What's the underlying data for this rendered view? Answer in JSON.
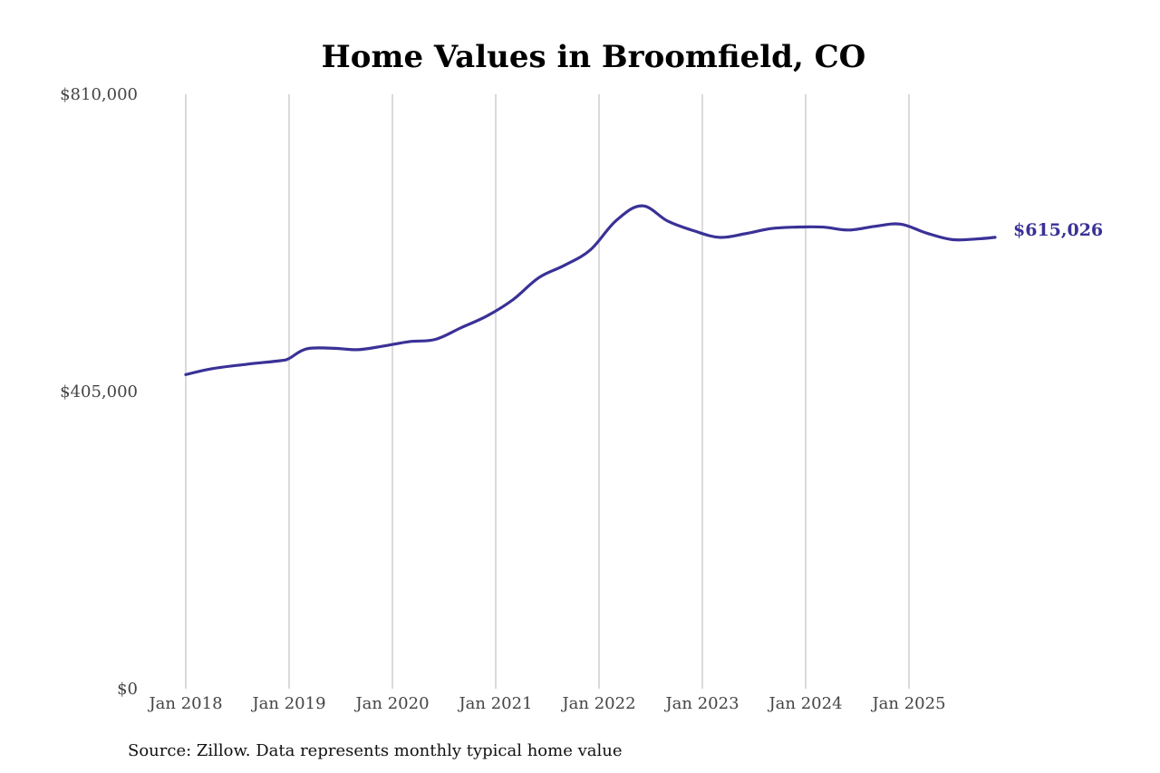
{
  "colors": {
    "series": "#3a3197",
    "grid": "#b5b5b5",
    "tick_text": "#444444"
  },
  "source_note": "Source: Zillow. Data represents monthly typical home value",
  "chart_data": {
    "type": "line",
    "title": "Home Values in Broomfield, CO",
    "xlabel": "",
    "ylabel": "",
    "ylim": [
      0,
      810000
    ],
    "xlim": [
      "2018-01",
      "2025-11"
    ],
    "grid": {
      "x": true,
      "y": false
    },
    "legend": "none",
    "yticks": [
      {
        "value": 0,
        "label": "$0"
      },
      {
        "value": 405000,
        "label": "$405,000"
      },
      {
        "value": 810000,
        "label": "$810,000"
      }
    ],
    "xticks": [
      {
        "value": "2018-01",
        "label": "Jan 2018"
      },
      {
        "value": "2019-01",
        "label": "Jan 2019"
      },
      {
        "value": "2020-01",
        "label": "Jan 2020"
      },
      {
        "value": "2021-01",
        "label": "Jan 2021"
      },
      {
        "value": "2022-01",
        "label": "Jan 2022"
      },
      {
        "value": "2023-01",
        "label": "Jan 2023"
      },
      {
        "value": "2024-01",
        "label": "Jan 2024"
      },
      {
        "value": "2025-01",
        "label": "Jan 2025"
      }
    ],
    "end_label": "$615,026",
    "series": [
      {
        "x": [
          "2018-01",
          "2018-04",
          "2018-08",
          "2018-12",
          "2019-01",
          "2019-03",
          "2019-06",
          "2019-09",
          "2019-12",
          "2020-03",
          "2020-06",
          "2020-09",
          "2020-12",
          "2021-03",
          "2021-06",
          "2021-09",
          "2021-12",
          "2022-03",
          "2022-06",
          "2022-09",
          "2022-12",
          "2023-03",
          "2023-06",
          "2023-09",
          "2023-12",
          "2024-03",
          "2024-06",
          "2024-09",
          "2024-12",
          "2025-03",
          "2025-06",
          "2025-09",
          "2025-11"
        ],
        "values": [
          428000,
          436000,
          442000,
          447000,
          450000,
          463000,
          464000,
          462000,
          467000,
          473000,
          476000,
          492000,
          508000,
          530000,
          560000,
          577000,
          598000,
          638000,
          658000,
          637000,
          624000,
          615000,
          620000,
          627000,
          629000,
          629000,
          625000,
          630000,
          633000,
          621000,
          612000,
          613000,
          615026
        ]
      }
    ]
  }
}
